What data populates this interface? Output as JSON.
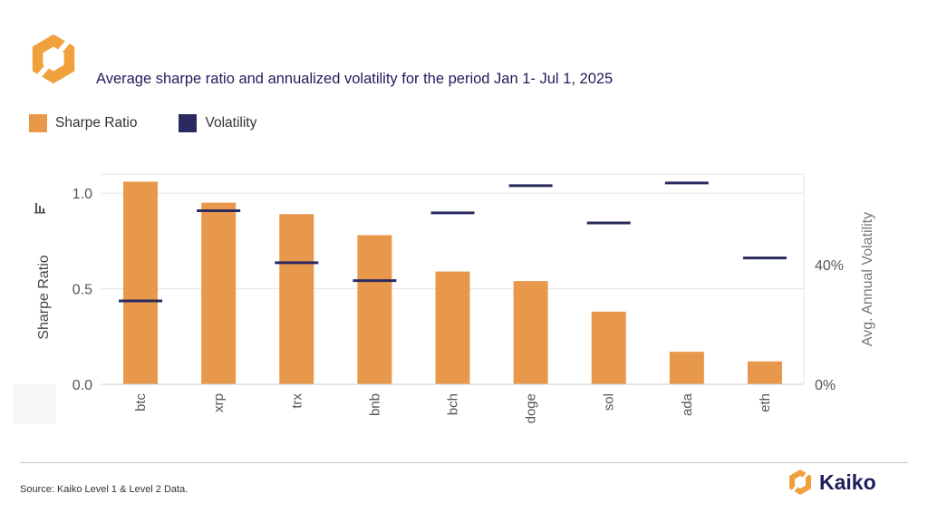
{
  "header": {
    "title": "Sharpe Ratio and Annualized Volatility",
    "subtitle": "Average sharpe ratio and annualized volatility for the period Jan 1- Jul 1, 2025"
  },
  "colors": {
    "bar": "#e8984a",
    "volatility": "#2a2a60",
    "brand_orange": "#f0a13c",
    "brand_navy": "#1f1d5c"
  },
  "chart_data": {
    "type": "bar",
    "categories": [
      "btc",
      "xrp",
      "trx",
      "bnb",
      "bch",
      "doge",
      "sol",
      "ada",
      "eth"
    ],
    "series": [
      {
        "name": "Sharpe Ratio",
        "axis": "left",
        "mark": "bar",
        "values": [
          1.06,
          0.95,
          0.89,
          0.78,
          0.59,
          0.54,
          0.38,
          0.17,
          0.12
        ]
      },
      {
        "name": "Volatility",
        "axis": "right",
        "mark": "horizontal-tick",
        "values": [
          27.9,
          58.1,
          40.7,
          34.7,
          57.4,
          66.5,
          54.0,
          67.4,
          42.3
        ]
      }
    ],
    "ylabel": "Sharpe Ratio",
    "ylabel_right": "Avg. Annual Volatility",
    "ylim": [
      0,
      1.1
    ],
    "ylim_right": [
      0,
      70.4
    ],
    "yticks": [
      "0.0",
      "0.5",
      "1.0"
    ],
    "yticks_right": [
      "0%",
      "40%"
    ],
    "grid": true,
    "legend_position": "top-left"
  },
  "footer": {
    "source": "Source: Kaiko Level 1 & Level 2 Data.",
    "brand": "Kaiko"
  }
}
